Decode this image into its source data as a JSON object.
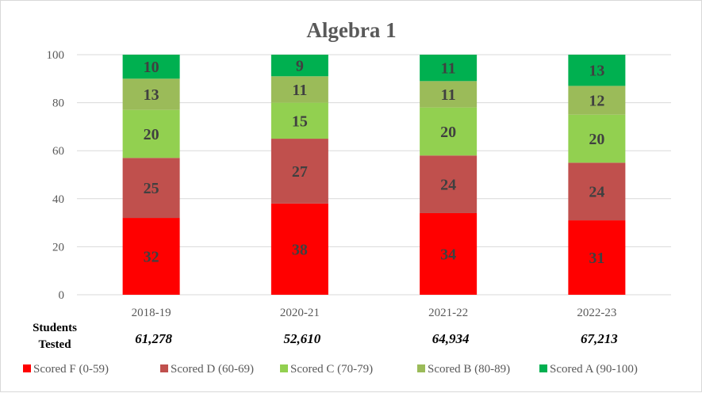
{
  "chart_data": {
    "type": "bar",
    "stacked": true,
    "title": "Algebra 1",
    "xlabel": "",
    "ylabel": "",
    "ylim": [
      0,
      100
    ],
    "yticks": [
      0,
      20,
      40,
      60,
      80,
      100
    ],
    "grid": true,
    "legend_position": "bottom",
    "categories": [
      "2018-19",
      "2020-21",
      "2021-22",
      "2022-23"
    ],
    "series": [
      {
        "name": "Scored F (0-59)",
        "color": "#ff0000",
        "values": [
          32,
          38,
          34,
          31
        ]
      },
      {
        "name": "Scored D (60-69)",
        "color": "#c0504d",
        "values": [
          25,
          27,
          24,
          24
        ]
      },
      {
        "name": "Scored C (70-79)",
        "color": "#92d050",
        "values": [
          20,
          15,
          20,
          20
        ]
      },
      {
        "name": "Scored B (80-89)",
        "color": "#9bbb59",
        "values": [
          13,
          11,
          11,
          12
        ]
      },
      {
        "name": "Scored A (90-100)",
        "color": "#00b050",
        "values": [
          10,
          9,
          11,
          13
        ]
      }
    ],
    "students_tested": {
      "label_line1": "Students",
      "label_line2": "Tested",
      "values": [
        "61,278",
        "52,610",
        "64,934",
        "67,213"
      ]
    }
  }
}
